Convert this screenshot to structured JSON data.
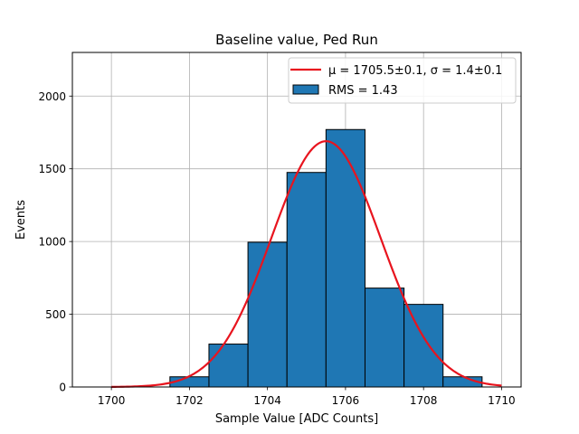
{
  "chart_data": {
    "type": "bar",
    "title": "Baseline value, Ped Run",
    "xlabel": "Sample Value [ADC Counts]",
    "ylabel": "Events",
    "xlim": [
      1699,
      1710.5
    ],
    "ylim": [
      0,
      2300
    ],
    "xticks": [
      1700,
      1702,
      1704,
      1706,
      1708,
      1710
    ],
    "yticks": [
      0,
      500,
      1000,
      1500,
      2000
    ],
    "grid": true,
    "legend_position": "top-right",
    "histogram": {
      "name": "RMS = 1.43",
      "color": "#1f77b4",
      "bins": [
        {
          "start": 1699.5,
          "end": 1700.5,
          "count": 0
        },
        {
          "start": 1700.5,
          "end": 1701.5,
          "count": 0
        },
        {
          "start": 1701.5,
          "end": 1702.5,
          "count": 70
        },
        {
          "start": 1702.5,
          "end": 1703.5,
          "count": 295
        },
        {
          "start": 1703.5,
          "end": 1704.5,
          "count": 995
        },
        {
          "start": 1704.5,
          "end": 1705.5,
          "count": 1475
        },
        {
          "start": 1705.5,
          "end": 1706.5,
          "count": 1770
        },
        {
          "start": 1706.5,
          "end": 1707.5,
          "count": 680
        },
        {
          "start": 1707.5,
          "end": 1708.5,
          "count": 568
        },
        {
          "start": 1708.5,
          "end": 1709.5,
          "count": 70
        }
      ]
    },
    "fit": {
      "name": "μ = 1705.5±0.1, σ = 1.4±0.1",
      "color": "#e8141e",
      "model": "gaussian",
      "mu": 1705.5,
      "sigma": 1.4,
      "amplitude": 1690,
      "x_range": [
        1700,
        1710
      ]
    }
  }
}
